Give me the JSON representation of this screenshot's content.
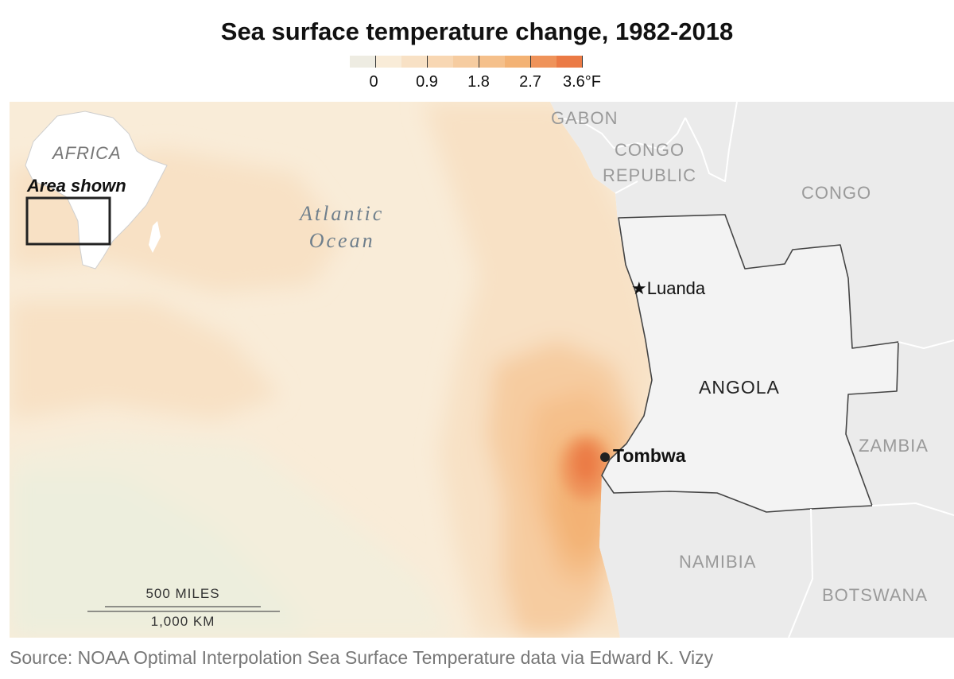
{
  "title": "Sea surface temperature change, 1982-2018",
  "legend": {
    "unit": "°F",
    "ticks": [
      "0",
      "0.9",
      "1.8",
      "2.7",
      "3.6°F"
    ],
    "bins": [
      {
        "from": -0.45,
        "to": 0,
        "color": "#eeece2"
      },
      {
        "from": 0,
        "to": 0.45,
        "color": "#f9ecd8"
      },
      {
        "from": 0.45,
        "to": 0.9,
        "color": "#f8e1c5"
      },
      {
        "from": 0.9,
        "to": 1.35,
        "color": "#f8d7b3"
      },
      {
        "from": 1.35,
        "to": 1.8,
        "color": "#f6cca0"
      },
      {
        "from": 1.8,
        "to": 2.25,
        "color": "#f5c08b"
      },
      {
        "from": 2.25,
        "to": 2.7,
        "color": "#f3b274"
      },
      {
        "from": 2.7,
        "to": 3.15,
        "color": "#ef935a"
      },
      {
        "from": 3.15,
        "to": 3.6,
        "color": "#eb7a45"
      }
    ]
  },
  "map": {
    "ocean_label": [
      "Atlantic",
      "Ocean"
    ],
    "countries": {
      "gabon": "GABON",
      "congo_republic": [
        "CONGO",
        "REPUBLIC"
      ],
      "congo": "CONGO",
      "angola": "ANGOLA",
      "zambia": "ZAMBIA",
      "namibia": "NAMIBIA",
      "botswana": "BOTSWANA"
    },
    "cities": {
      "luanda": "Luanda",
      "tombwa": "Tombwa"
    },
    "inset": {
      "continent": "AFRICA",
      "caption": "Area shown"
    },
    "scale": {
      "miles": "500 MILES",
      "km": "1,000 KM"
    },
    "colors": {
      "land": "#ebebeb",
      "angola": "#f3f3f3",
      "border": "#ffffff",
      "angola_border": "#444444"
    }
  },
  "source": "Source: NOAA Optimal Interpolation Sea Surface Temperature data via Edward K. Vizy"
}
